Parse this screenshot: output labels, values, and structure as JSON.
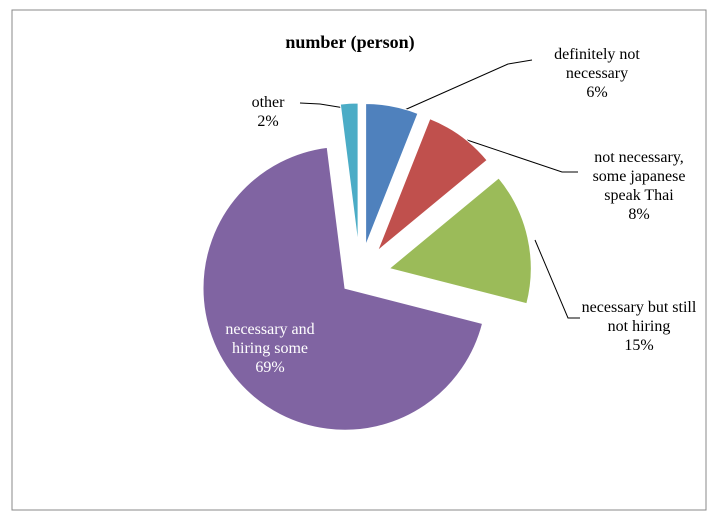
{
  "chart_data": {
    "type": "pie",
    "title": "number (person)",
    "categories": [
      "definitely not necessary",
      "not necessary, some japanese speak Thai",
      "necessary but still not hiring",
      "necessary and hiring some",
      "other"
    ],
    "values": [
      6,
      8,
      15,
      69,
      2
    ],
    "value_labels": [
      "6%",
      "8%",
      "15%",
      "69%",
      "2%"
    ],
    "colors": [
      "#4f81bd",
      "#c0504d",
      "#9bbb59",
      "#8064a2",
      "#4bacc6"
    ],
    "exploded": true
  }
}
